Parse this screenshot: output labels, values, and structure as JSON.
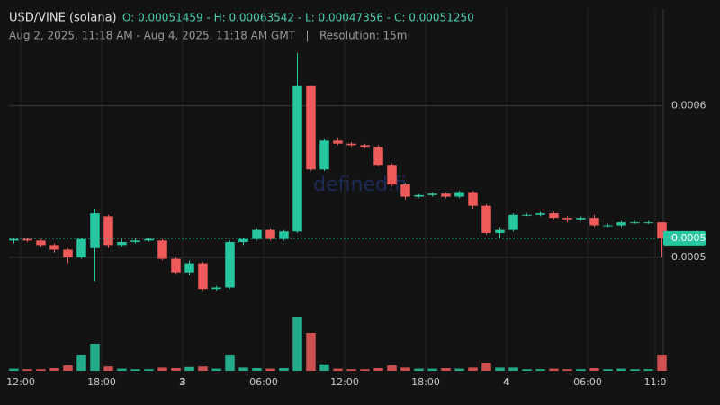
{
  "chart_data": {
    "type": "candlestick",
    "title": "USD/VINE (solana)",
    "ohlc_summary": "O: 0.00051459 - H: 0.00063542 - L: 0.00047356 - C: 0.00051250",
    "subtitle": "Aug 2, 2025, 11:18 AM - Aug 4, 2025, 11:18 AM GMT   |   Resolution: 15m",
    "watermark": "defined.fi",
    "x": [
      "2025-08-02T11:00",
      "2025-08-02T12:00",
      "2025-08-02T13:00",
      "2025-08-02T14:00",
      "2025-08-02T15:00",
      "2025-08-02T16:00",
      "2025-08-02T17:00",
      "2025-08-02T18:00",
      "2025-08-02T19:00",
      "2025-08-02T20:00",
      "2025-08-02T21:00",
      "2025-08-02T22:00",
      "2025-08-02T23:00",
      "2025-08-03T00:00",
      "2025-08-03T01:00",
      "2025-08-03T02:00",
      "2025-08-03T03:00",
      "2025-08-03T04:00",
      "2025-08-03T05:00",
      "2025-08-03T06:00",
      "2025-08-03T07:00",
      "2025-08-03T08:00",
      "2025-08-03T09:00",
      "2025-08-03T10:00",
      "2025-08-03T11:00",
      "2025-08-03T12:00",
      "2025-08-03T13:00",
      "2025-08-03T14:00",
      "2025-08-03T15:00",
      "2025-08-03T16:00",
      "2025-08-03T17:00",
      "2025-08-03T18:00",
      "2025-08-03T19:00",
      "2025-08-03T20:00",
      "2025-08-03T21:00",
      "2025-08-03T22:00",
      "2025-08-03T23:00",
      "2025-08-04T00:00",
      "2025-08-04T01:00",
      "2025-08-04T02:00",
      "2025-08-04T03:00",
      "2025-08-04T04:00",
      "2025-08-04T05:00",
      "2025-08-04T06:00",
      "2025-08-04T07:00",
      "2025-08-04T08:00",
      "2025-08-04T09:00",
      "2025-08-04T10:00",
      "2025-08-04T11:00"
    ],
    "open": [
      0.000511,
      0.000512,
      0.000511,
      0.000508,
      0.000505,
      0.0005,
      0.000506,
      0.000527,
      0.000508,
      0.00051,
      0.000511,
      0.000511,
      0.000499,
      0.00049,
      0.000496,
      0.000479,
      0.00048,
      0.00051,
      0.000512,
      0.000518,
      0.000512,
      0.000517,
      0.000613,
      0.000558,
      0.000577,
      0.000575,
      0.000574,
      0.000573,
      0.000561,
      0.000548,
      0.00054,
      0.000541,
      0.000542,
      0.00054,
      0.000543,
      0.000534,
      0.000516,
      0.000518,
      0.000528,
      0.000528,
      0.000529,
      0.000526,
      0.000525,
      0.000526,
      0.000521,
      0.000521,
      0.000523,
      0.000523,
      0.000523
    ],
    "high": [
      0.000513,
      0.000513,
      0.000512,
      0.000509,
      0.000506,
      0.000513,
      0.000532,
      0.000528,
      0.000512,
      0.000512,
      0.000513,
      0.000512,
      0.0005,
      0.000498,
      0.000497,
      0.000481,
      0.000511,
      0.000513,
      0.000519,
      0.000519,
      0.000518,
      0.000635,
      0.000613,
      0.000578,
      0.000579,
      0.000576,
      0.000575,
      0.000574,
      0.000562,
      0.000549,
      0.000542,
      0.000543,
      0.000543,
      0.000544,
      0.000544,
      0.000535,
      0.00052,
      0.000529,
      0.000529,
      0.00053,
      0.00053,
      0.000527,
      0.000527,
      0.000528,
      0.000522,
      0.000524,
      0.000524,
      0.000524,
      0.000523
    ],
    "low": [
      0.000509,
      0.00051,
      0.000507,
      0.000503,
      0.000496,
      0.000499,
      0.000484,
      0.000506,
      0.000507,
      0.000509,
      0.00051,
      0.000498,
      0.000489,
      0.000488,
      0.000478,
      0.000478,
      0.000479,
      0.000508,
      0.000511,
      0.000511,
      0.000511,
      0.000516,
      0.000557,
      0.000557,
      0.000574,
      0.000573,
      0.000572,
      0.00056,
      0.000547,
      0.000538,
      0.000539,
      0.00054,
      0.000539,
      0.000539,
      0.000532,
      0.000515,
      0.000513,
      0.000517,
      0.000527,
      0.000527,
      0.000525,
      0.000523,
      0.000524,
      0.00052,
      0.00052,
      0.00052,
      0.000522,
      0.000522,
      0.0005
    ],
    "close": [
      0.000512,
      0.000511,
      0.000508,
      0.000505,
      0.0005,
      0.000512,
      0.000529,
      0.000508,
      0.00051,
      0.000511,
      0.000512,
      0.000499,
      0.00049,
      0.000496,
      0.000479,
      0.00048,
      0.00051,
      0.000512,
      0.000518,
      0.000512,
      0.000517,
      0.000613,
      0.000558,
      0.000577,
      0.000575,
      0.000574,
      0.000573,
      0.000561,
      0.000548,
      0.00054,
      0.000541,
      0.000542,
      0.00054,
      0.000543,
      0.000534,
      0.000516,
      0.000518,
      0.000528,
      0.000528,
      0.000529,
      0.000526,
      0.000525,
      0.000526,
      0.000521,
      0.000521,
      0.000523,
      0.000523,
      0.000523,
      0.0005125
    ],
    "volume": [
      4,
      3,
      3,
      5,
      10,
      30,
      50,
      8,
      4,
      3,
      3,
      6,
      5,
      7,
      8,
      4,
      30,
      6,
      5,
      4,
      5,
      100,
      70,
      12,
      4,
      3,
      3,
      5,
      10,
      6,
      4,
      4,
      5,
      4,
      6,
      15,
      6,
      6,
      3,
      3,
      4,
      3,
      3,
      5,
      3,
      4,
      3,
      3,
      30
    ],
    "up_color": "#26c6a0",
    "down_color": "#ef5b5b",
    "xlim": [
      "2025-08-02T11:08",
      "2025-08-04T11:28"
    ],
    "xticks": [
      {
        "value": "2025-08-02T12:00",
        "label": "12:00"
      },
      {
        "value": "2025-08-02T18:00",
        "label": "18:00"
      },
      {
        "value": "2025-08-03T00:00",
        "label": "3"
      },
      {
        "value": "2025-08-03T06:00",
        "label": "06:00"
      },
      {
        "value": "2025-08-03T12:00",
        "label": "12:00"
      },
      {
        "value": "2025-08-03T18:00",
        "label": "18:00"
      },
      {
        "value": "2025-08-04T00:00",
        "label": "4"
      },
      {
        "value": "2025-08-04T06:00",
        "label": "06:00"
      },
      {
        "value": "2025-08-04T11:00",
        "label": "11:0"
      }
    ],
    "ylim": [
      0.000425,
      0.000664
    ],
    "yticks": [
      0.0005,
      0.0006
    ],
    "last_price": {
      "value": 0.0005125,
      "label": "0.0005"
    },
    "grid": true
  }
}
